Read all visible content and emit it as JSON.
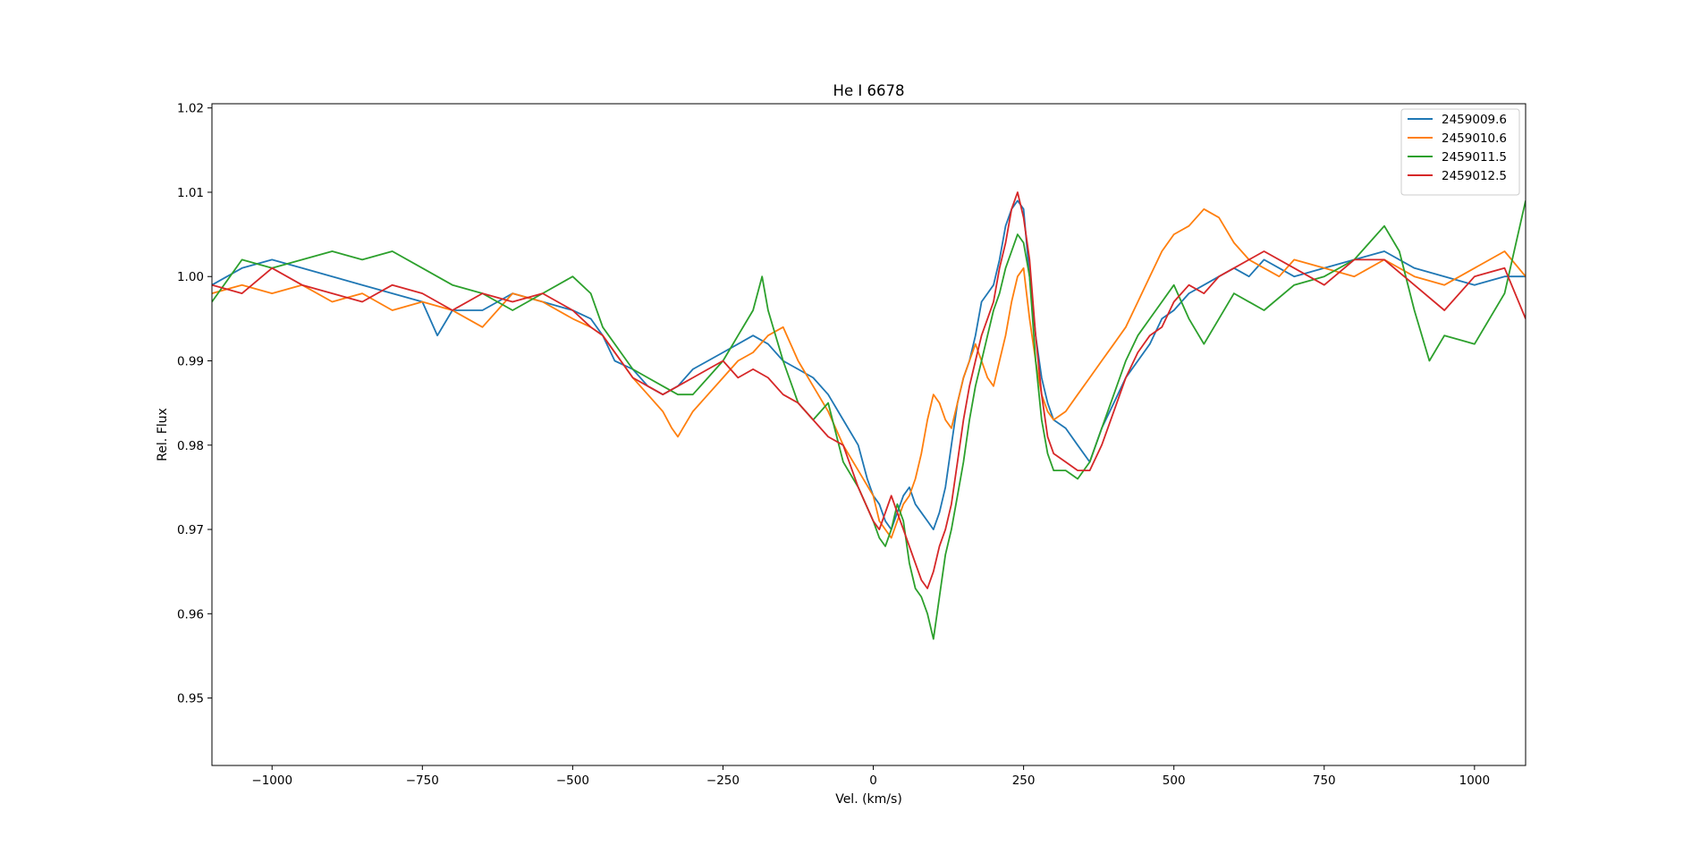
{
  "chart_data": {
    "type": "line",
    "title": "He I 6678",
    "xlabel": "Vel. (km/s)",
    "ylabel": "Rel. Flux",
    "xlim": [
      -1100,
      1085
    ],
    "ylim": [
      0.942,
      1.0205
    ],
    "xticks": [
      -1000,
      -750,
      -500,
      -250,
      0,
      250,
      500,
      750,
      1000
    ],
    "xtick_labels": [
      "−1000",
      "−750",
      "−500",
      "−250",
      "0",
      "250",
      "500",
      "750",
      "1000"
    ],
    "yticks": [
      0.95,
      0.96,
      0.97,
      0.98,
      0.99,
      1.0,
      1.01,
      1.02
    ],
    "ytick_labels": [
      "0.95",
      "0.96",
      "0.97",
      "0.98",
      "0.99",
      "1.00",
      "1.01",
      "1.02"
    ],
    "grid": false,
    "legend_position": "top-right",
    "series": [
      {
        "name": "2459009.6",
        "color": "#1f77b4",
        "x": [
          -1100,
          -1050,
          -1000,
          -950,
          -900,
          -850,
          -800,
          -750,
          -725,
          -700,
          -650,
          -600,
          -550,
          -500,
          -470,
          -450,
          -430,
          -400,
          -375,
          -350,
          -325,
          -300,
          -275,
          -250,
          -225,
          -200,
          -175,
          -150,
          -125,
          -100,
          -75,
          -50,
          -25,
          -10,
          0,
          10,
          20,
          30,
          40,
          50,
          60,
          70,
          80,
          90,
          100,
          110,
          120,
          130,
          140,
          150,
          160,
          170,
          180,
          190,
          200,
          210,
          220,
          230,
          240,
          250,
          260,
          270,
          280,
          290,
          300,
          320,
          340,
          360,
          380,
          400,
          420,
          440,
          460,
          480,
          500,
          525,
          550,
          575,
          600,
          625,
          650,
          675,
          700,
          750,
          800,
          850,
          900,
          950,
          1000,
          1050,
          1085
        ],
        "y": [
          0.999,
          1.001,
          1.002,
          1.001,
          1.0,
          0.999,
          0.998,
          0.997,
          0.993,
          0.996,
          0.996,
          0.998,
          0.997,
          0.996,
          0.995,
          0.993,
          0.99,
          0.989,
          0.987,
          0.986,
          0.987,
          0.989,
          0.99,
          0.991,
          0.992,
          0.993,
          0.992,
          0.99,
          0.989,
          0.988,
          0.986,
          0.983,
          0.98,
          0.976,
          0.974,
          0.973,
          0.971,
          0.97,
          0.972,
          0.974,
          0.975,
          0.973,
          0.972,
          0.971,
          0.97,
          0.972,
          0.975,
          0.98,
          0.985,
          0.988,
          0.99,
          0.993,
          0.997,
          0.998,
          0.999,
          1.002,
          1.006,
          1.008,
          1.009,
          1.008,
          1.0,
          0.993,
          0.988,
          0.985,
          0.983,
          0.982,
          0.98,
          0.978,
          0.982,
          0.985,
          0.988,
          0.99,
          0.992,
          0.995,
          0.996,
          0.998,
          0.999,
          1.0,
          1.001,
          1.0,
          1.002,
          1.001,
          1.0,
          1.001,
          1.002,
          1.003,
          1.001,
          1.0,
          0.999,
          1.0,
          1.0
        ]
      },
      {
        "name": "2459010.6",
        "color": "#ff7f0e",
        "x": [
          -1100,
          -1050,
          -1000,
          -950,
          -900,
          -850,
          -800,
          -750,
          -700,
          -650,
          -600,
          -550,
          -500,
          -470,
          -450,
          -420,
          -400,
          -375,
          -350,
          -335,
          -325,
          -300,
          -275,
          -250,
          -225,
          -200,
          -175,
          -150,
          -125,
          -100,
          -75,
          -50,
          -25,
          0,
          10,
          20,
          30,
          40,
          50,
          60,
          70,
          80,
          90,
          100,
          110,
          120,
          130,
          140,
          150,
          160,
          170,
          180,
          190,
          200,
          210,
          220,
          230,
          240,
          250,
          260,
          270,
          280,
          290,
          300,
          320,
          340,
          360,
          380,
          400,
          420,
          440,
          460,
          480,
          500,
          525,
          550,
          575,
          600,
          625,
          650,
          675,
          700,
          750,
          800,
          850,
          900,
          950,
          1000,
          1050,
          1085
        ],
        "y": [
          0.998,
          0.999,
          0.998,
          0.999,
          0.997,
          0.998,
          0.996,
          0.997,
          0.996,
          0.994,
          0.998,
          0.997,
          0.995,
          0.994,
          0.993,
          0.99,
          0.988,
          0.986,
          0.984,
          0.982,
          0.981,
          0.984,
          0.986,
          0.988,
          0.99,
          0.991,
          0.993,
          0.994,
          0.99,
          0.987,
          0.984,
          0.98,
          0.977,
          0.974,
          0.971,
          0.97,
          0.969,
          0.971,
          0.973,
          0.974,
          0.976,
          0.979,
          0.983,
          0.986,
          0.985,
          0.983,
          0.982,
          0.985,
          0.988,
          0.99,
          0.992,
          0.99,
          0.988,
          0.987,
          0.99,
          0.993,
          0.997,
          1.0,
          1.001,
          0.995,
          0.99,
          0.986,
          0.984,
          0.983,
          0.984,
          0.986,
          0.988,
          0.99,
          0.992,
          0.994,
          0.997,
          1.0,
          1.003,
          1.005,
          1.006,
          1.008,
          1.007,
          1.004,
          1.002,
          1.001,
          1.0,
          1.002,
          1.001,
          1.0,
          1.002,
          1.0,
          0.999,
          1.001,
          1.003,
          1.0
        ]
      },
      {
        "name": "2459011.5",
        "color": "#2ca02c",
        "x": [
          -1100,
          -1050,
          -1000,
          -950,
          -900,
          -850,
          -800,
          -750,
          -700,
          -650,
          -600,
          -550,
          -500,
          -470,
          -450,
          -420,
          -400,
          -375,
          -350,
          -325,
          -300,
          -275,
          -250,
          -225,
          -200,
          -185,
          -175,
          -150,
          -125,
          -100,
          -75,
          -50,
          -25,
          0,
          10,
          20,
          30,
          40,
          50,
          60,
          70,
          80,
          90,
          100,
          110,
          120,
          130,
          140,
          150,
          160,
          170,
          180,
          190,
          200,
          210,
          220,
          230,
          240,
          250,
          260,
          270,
          280,
          290,
          300,
          320,
          340,
          360,
          380,
          400,
          420,
          440,
          460,
          480,
          500,
          525,
          550,
          575,
          600,
          650,
          700,
          750,
          800,
          850,
          875,
          900,
          925,
          950,
          1000,
          1050,
          1085
        ],
        "y": [
          0.997,
          1.002,
          1.001,
          1.002,
          1.003,
          1.002,
          1.003,
          1.001,
          0.999,
          0.998,
          0.996,
          0.998,
          1.0,
          0.998,
          0.994,
          0.991,
          0.989,
          0.988,
          0.987,
          0.986,
          0.986,
          0.988,
          0.99,
          0.993,
          0.996,
          1.0,
          0.996,
          0.99,
          0.985,
          0.983,
          0.985,
          0.978,
          0.975,
          0.971,
          0.969,
          0.968,
          0.97,
          0.973,
          0.971,
          0.966,
          0.963,
          0.962,
          0.96,
          0.957,
          0.962,
          0.967,
          0.97,
          0.974,
          0.978,
          0.983,
          0.987,
          0.99,
          0.993,
          0.996,
          0.998,
          1.001,
          1.003,
          1.005,
          1.004,
          1.0,
          0.99,
          0.983,
          0.979,
          0.977,
          0.977,
          0.976,
          0.978,
          0.982,
          0.986,
          0.99,
          0.993,
          0.995,
          0.997,
          0.999,
          0.995,
          0.992,
          0.995,
          0.998,
          0.996,
          0.999,
          1.0,
          1.002,
          1.006,
          1.003,
          0.996,
          0.99,
          0.993,
          0.992,
          0.998,
          1.009
        ]
      },
      {
        "name": "2459012.5",
        "color": "#d62728",
        "x": [
          -1100,
          -1050,
          -1000,
          -950,
          -900,
          -850,
          -800,
          -750,
          -700,
          -650,
          -600,
          -550,
          -500,
          -470,
          -450,
          -420,
          -400,
          -375,
          -350,
          -325,
          -300,
          -275,
          -250,
          -225,
          -200,
          -175,
          -150,
          -125,
          -100,
          -75,
          -50,
          -25,
          0,
          10,
          20,
          30,
          40,
          50,
          60,
          70,
          80,
          90,
          100,
          110,
          120,
          130,
          140,
          150,
          160,
          170,
          180,
          190,
          200,
          210,
          220,
          230,
          240,
          250,
          260,
          270,
          280,
          290,
          300,
          320,
          340,
          360,
          380,
          400,
          420,
          440,
          460,
          480,
          500,
          525,
          550,
          575,
          600,
          625,
          650,
          700,
          750,
          800,
          850,
          900,
          950,
          1000,
          1050,
          1085
        ],
        "y": [
          0.999,
          0.998,
          1.001,
          0.999,
          0.998,
          0.997,
          0.999,
          0.998,
          0.996,
          0.998,
          0.997,
          0.998,
          0.996,
          0.994,
          0.993,
          0.99,
          0.988,
          0.987,
          0.986,
          0.987,
          0.988,
          0.989,
          0.99,
          0.988,
          0.989,
          0.988,
          0.986,
          0.985,
          0.983,
          0.981,
          0.98,
          0.975,
          0.971,
          0.97,
          0.972,
          0.974,
          0.972,
          0.97,
          0.968,
          0.966,
          0.964,
          0.963,
          0.965,
          0.968,
          0.97,
          0.973,
          0.978,
          0.983,
          0.987,
          0.99,
          0.993,
          0.995,
          0.997,
          1.001,
          1.004,
          1.008,
          1.01,
          1.007,
          1.002,
          0.993,
          0.986,
          0.981,
          0.979,
          0.978,
          0.977,
          0.977,
          0.98,
          0.984,
          0.988,
          0.991,
          0.993,
          0.994,
          0.997,
          0.999,
          0.998,
          1.0,
          1.001,
          1.002,
          1.003,
          1.001,
          0.999,
          1.002,
          1.002,
          0.999,
          0.996,
          1.0,
          1.001,
          0.995
        ]
      }
    ]
  }
}
